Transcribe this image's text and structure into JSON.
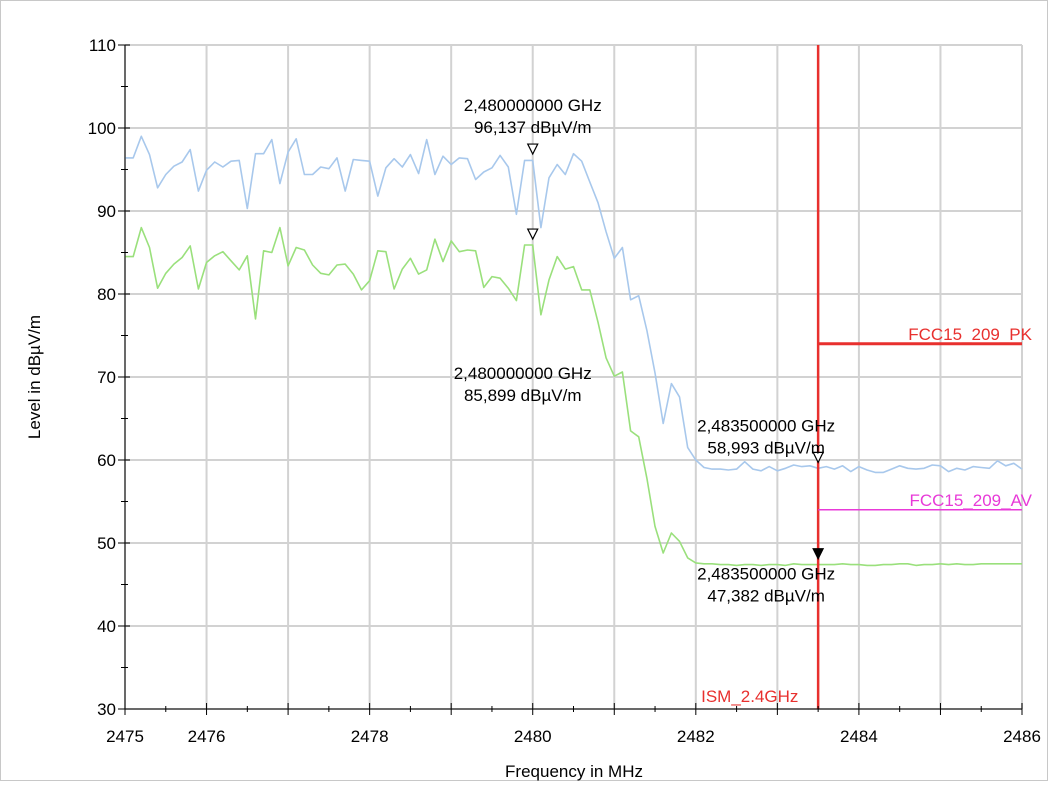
{
  "chart_data": {
    "type": "line",
    "xlabel": "Frequency in MHz",
    "ylabel": "Level in dBµV/m",
    "xlim": [
      2475,
      2486
    ],
    "ylim": [
      30,
      110
    ],
    "x_tick_labels": [
      {
        "value": 2475,
        "label": "2475"
      },
      {
        "value": 2476,
        "label": "2476"
      },
      {
        "value": 2478,
        "label": "2478"
      },
      {
        "value": 2480,
        "label": "2480"
      },
      {
        "value": 2482,
        "label": "2482"
      },
      {
        "value": 2484,
        "label": "2484"
      },
      {
        "value": 2486,
        "label": "2486"
      }
    ],
    "y_tick_labels": [
      {
        "value": 30,
        "label": "30"
      },
      {
        "value": 40,
        "label": "40"
      },
      {
        "value": 50,
        "label": "50"
      },
      {
        "value": 60,
        "label": "60"
      },
      {
        "value": 70,
        "label": "70"
      },
      {
        "value": 80,
        "label": "80"
      },
      {
        "value": 90,
        "label": "90"
      },
      {
        "value": 100,
        "label": "100"
      },
      {
        "value": 110,
        "label": "110"
      }
    ],
    "grid": true,
    "series": [
      {
        "color": "#a8c8ec",
        "x": [
          2475.0,
          2475.1,
          2475.2,
          2475.3,
          2475.4,
          2475.5,
          2475.6,
          2475.7,
          2475.8,
          2475.9,
          2476.0,
          2476.1,
          2476.2,
          2476.3,
          2476.4,
          2476.5,
          2476.6,
          2476.7,
          2476.8,
          2476.9,
          2477.0,
          2477.1,
          2477.2,
          2477.3,
          2477.4,
          2477.5,
          2477.6,
          2477.7,
          2477.8,
          2477.9,
          2478.0,
          2478.1,
          2478.2,
          2478.3,
          2478.4,
          2478.5,
          2478.6,
          2478.7,
          2478.8,
          2478.9,
          2479.0,
          2479.1,
          2479.2,
          2479.3,
          2479.4,
          2479.5,
          2479.6,
          2479.7,
          2479.8,
          2479.9,
          2480.0,
          2480.1,
          2480.2,
          2480.3,
          2480.4,
          2480.5,
          2480.6,
          2480.7,
          2480.8,
          2480.9,
          2481.0,
          2481.1,
          2481.2,
          2481.3,
          2481.4,
          2481.5,
          2481.6,
          2481.7,
          2481.8,
          2481.9,
          2482.0,
          2482.1,
          2482.2,
          2482.3,
          2482.4,
          2482.5,
          2482.6,
          2482.7,
          2482.8,
          2482.9,
          2483.0,
          2483.1,
          2483.2,
          2483.3,
          2483.4,
          2483.5,
          2483.6,
          2483.7,
          2483.8,
          2483.9,
          2484.0,
          2484.1,
          2484.2,
          2484.3,
          2484.4,
          2484.5,
          2484.6,
          2484.7,
          2484.8,
          2484.9,
          2485.0,
          2485.1,
          2485.2,
          2485.3,
          2485.4,
          2485.5,
          2485.6,
          2485.7,
          2485.8,
          2485.9,
          2486.0
        ],
        "y": [
          96.4,
          96.4,
          99.0,
          96.8,
          92.8,
          94.4,
          95.4,
          95.9,
          97.4,
          92.4,
          94.9,
          95.9,
          95.3,
          96.0,
          96.1,
          90.3,
          96.9,
          96.9,
          98.6,
          93.3,
          97.1,
          98.7,
          94.4,
          94.4,
          95.3,
          95.1,
          96.4,
          92.4,
          96.2,
          96.1,
          96.0,
          91.8,
          95.2,
          96.3,
          95.3,
          96.8,
          94.5,
          98.6,
          94.4,
          96.6,
          95.6,
          96.4,
          96.3,
          93.8,
          94.7,
          95.2,
          96.7,
          95.3,
          89.6,
          96.1,
          96.1,
          88.0,
          94.0,
          95.6,
          94.4,
          96.9,
          96.0,
          93.5,
          91.0,
          87.5,
          84.3,
          85.6,
          79.3,
          79.8,
          75.6,
          70.5,
          64.4,
          69.2,
          67.6,
          61.5,
          60.0,
          59.1,
          58.9,
          58.9,
          58.8,
          58.9,
          59.8,
          58.9,
          58.7,
          59.2,
          58.7,
          59.0,
          59.4,
          59.2,
          59.3,
          59.0,
          59.2,
          58.9,
          59.3,
          58.6,
          59.2,
          58.8,
          58.5,
          58.5,
          58.9,
          59.3,
          59.0,
          58.9,
          59.0,
          59.4,
          59.3,
          58.6,
          59.0,
          58.8,
          59.2,
          59.1,
          59.0,
          59.9,
          59.3,
          59.6,
          58.9
        ]
      },
      {
        "color": "#9ae07c",
        "x": [
          2475.0,
          2475.1,
          2475.2,
          2475.3,
          2475.4,
          2475.5,
          2475.6,
          2475.7,
          2475.8,
          2475.9,
          2476.0,
          2476.1,
          2476.2,
          2476.3,
          2476.4,
          2476.5,
          2476.6,
          2476.7,
          2476.8,
          2476.9,
          2477.0,
          2477.1,
          2477.2,
          2477.3,
          2477.4,
          2477.5,
          2477.6,
          2477.7,
          2477.8,
          2477.9,
          2478.0,
          2478.1,
          2478.2,
          2478.3,
          2478.4,
          2478.5,
          2478.6,
          2478.7,
          2478.8,
          2478.9,
          2479.0,
          2479.1,
          2479.2,
          2479.3,
          2479.4,
          2479.5,
          2479.6,
          2479.7,
          2479.8,
          2479.9,
          2480.0,
          2480.1,
          2480.2,
          2480.3,
          2480.4,
          2480.5,
          2480.6,
          2480.7,
          2480.8,
          2480.9,
          2481.0,
          2481.1,
          2481.2,
          2481.3,
          2481.4,
          2481.5,
          2481.6,
          2481.7,
          2481.8,
          2481.9,
          2482.0,
          2482.1,
          2482.2,
          2482.3,
          2482.4,
          2482.5,
          2482.6,
          2482.7,
          2482.8,
          2482.9,
          2483.0,
          2483.1,
          2483.2,
          2483.3,
          2483.4,
          2483.5,
          2483.6,
          2483.7,
          2483.8,
          2483.9,
          2484.0,
          2484.1,
          2484.2,
          2484.3,
          2484.4,
          2484.5,
          2484.6,
          2484.7,
          2484.8,
          2484.9,
          2485.0,
          2485.1,
          2485.2,
          2485.3,
          2485.4,
          2485.5,
          2485.6,
          2485.7,
          2485.8,
          2485.9,
          2486.0
        ],
        "y": [
          84.5,
          84.5,
          88.0,
          85.6,
          80.7,
          82.5,
          83.6,
          84.4,
          85.8,
          80.6,
          83.8,
          84.6,
          85.1,
          84.0,
          82.9,
          84.6,
          77.0,
          85.2,
          85.0,
          88.0,
          83.4,
          85.6,
          85.3,
          83.5,
          82.5,
          82.3,
          83.5,
          83.6,
          82.4,
          80.5,
          81.6,
          85.2,
          85.1,
          80.6,
          83.0,
          84.3,
          82.4,
          82.9,
          86.6,
          83.9,
          86.4,
          85.1,
          85.3,
          85.2,
          80.8,
          82.1,
          81.9,
          80.7,
          79.2,
          85.9,
          85.9,
          77.5,
          81.7,
          84.5,
          83.0,
          83.3,
          80.5,
          80.5,
          76.6,
          72.3,
          70.1,
          70.6,
          63.5,
          62.8,
          57.8,
          52.0,
          48.8,
          51.2,
          50.2,
          48.2,
          47.6,
          47.5,
          47.5,
          47.4,
          47.4,
          47.3,
          47.4,
          47.4,
          47.3,
          47.4,
          47.4,
          47.3,
          47.5,
          47.4,
          47.4,
          47.4,
          47.4,
          47.4,
          47.5,
          47.4,
          47.4,
          47.3,
          47.3,
          47.4,
          47.4,
          47.5,
          47.5,
          47.3,
          47.4,
          47.4,
          47.5,
          47.4,
          47.5,
          47.4,
          47.4,
          47.5,
          47.5,
          47.5,
          47.5,
          47.5,
          47.5
        ]
      }
    ],
    "limit_lines": [
      {
        "name": "FCC15_209_PK",
        "color": "#e8302e",
        "x_start": 2483.5,
        "x_end": 2486,
        "y": 74,
        "width": 3
      },
      {
        "name": "FCC15_209_AV",
        "color": "#e83ad8",
        "x_start": 2483.5,
        "x_end": 2486,
        "y": 54,
        "width": 1.5
      }
    ],
    "vertical_line": {
      "name": "ISM_2.4GHz",
      "color": "#e8302e",
      "x": 2483.5
    },
    "markers": [
      {
        "x": 2480.0,
        "y": 96.137,
        "style": "open",
        "freq_label": "2,480000000 GHz",
        "level_label": "96,137 dBµV/m"
      },
      {
        "x": 2480.0,
        "y": 85.899,
        "style": "open",
        "freq_label": "2,480000000 GHz",
        "level_label": "85,899 dBµV/m"
      },
      {
        "x": 2483.5,
        "y": 58.993,
        "style": "open",
        "freq_label": "2,483500000 GHz",
        "level_label": "58,993 dBµV/m"
      },
      {
        "x": 2483.5,
        "y": 47.382,
        "style": "filled",
        "freq_label": "2,483500000 GHz",
        "level_label": "47,382 dBµV/m"
      }
    ]
  }
}
